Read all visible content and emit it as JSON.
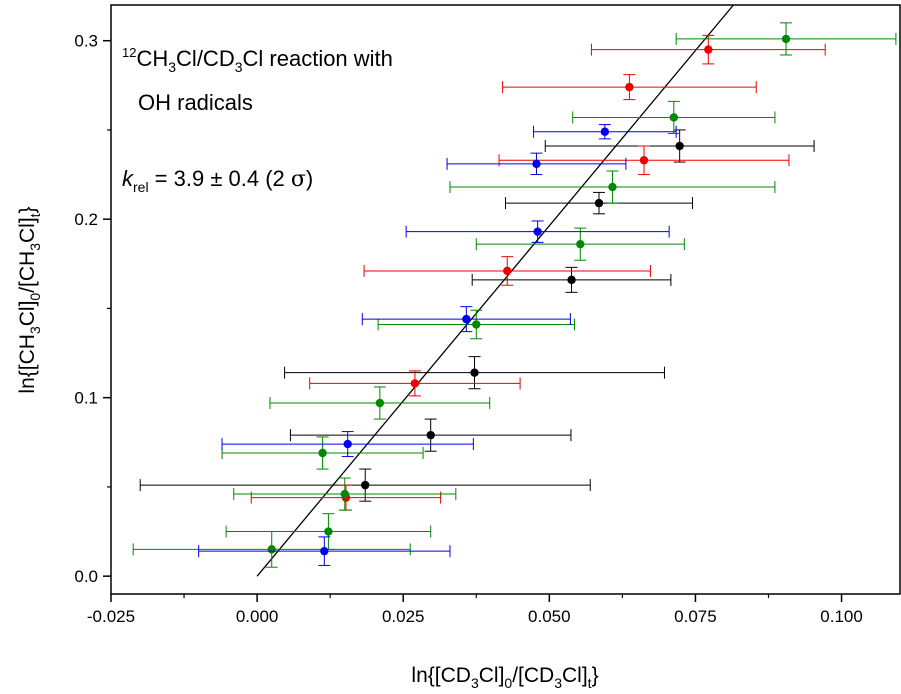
{
  "chart_data": {
    "type": "scatter",
    "title": "",
    "xlim": [
      -0.025,
      0.11
    ],
    "ylim": [
      -0.01,
      0.32
    ],
    "xticks": [
      "-0.025",
      "0.000",
      "0.025",
      "0.050",
      "0.075",
      "0.100"
    ],
    "xtick_values": [
      -0.025,
      0.0,
      0.025,
      0.05,
      0.075,
      0.1
    ],
    "yticks": [
      "0.0",
      "0.1",
      "0.2",
      "0.3"
    ],
    "ytick_values": [
      0.0,
      0.1,
      0.2,
      0.3
    ],
    "xlabel": {
      "pre": "ln{[CD",
      "sub1": "3",
      "mid": "Cl]",
      "sub2": "0",
      "mid2": "/[CD",
      "sub3": "3",
      "mid3": "Cl]",
      "sub4": "t",
      "post": "}"
    },
    "ylabel": {
      "pre": "ln{[CH",
      "sub1": "3",
      "mid": "Cl]",
      "sub2": "0",
      "mid2": "/[CH",
      "sub3": "3",
      "mid3": "Cl]",
      "sub4": "t",
      "post": "}"
    },
    "annotation": {
      "sup": "12",
      "line1_a": "CH",
      "line1_sub1": "3",
      "line1_b": "Cl/CD",
      "line1_sub2": "3",
      "line1_c": "Cl reaction with",
      "line2": "OH radicals",
      "k_symbol": "k",
      "k_sub": "rel",
      "k_value": " = 3.9 ± 0.4 (2 ",
      "sigma": "σ",
      "k_close": ")"
    },
    "grid": false,
    "fit_line": {
      "x": [
        0.0,
        0.0815
      ],
      "y": [
        0.0,
        0.32
      ],
      "color": "#000000"
    },
    "colors": {
      "black": "#000000",
      "red": "#ee0000",
      "green": "#008800",
      "blue": "#0000ee"
    },
    "series": [
      {
        "color": "#000000",
        "points": [
          {
            "x": 0.0185,
            "y": 0.051,
            "xerr": 0.0385,
            "yerr": 0.009
          },
          {
            "x": 0.0297,
            "y": 0.079,
            "xerr": 0.024,
            "yerr": 0.009
          },
          {
            "x": 0.0372,
            "y": 0.114,
            "xerr": 0.0325,
            "yerr": 0.009
          },
          {
            "x": 0.0538,
            "y": 0.166,
            "xerr": 0.017,
            "yerr": 0.007
          },
          {
            "x": 0.0585,
            "y": 0.209,
            "xerr": 0.016,
            "yerr": 0.006
          },
          {
            "x": 0.0723,
            "y": 0.241,
            "xerr": 0.023,
            "yerr": 0.009
          }
        ]
      },
      {
        "color": "#ee0000",
        "points": [
          {
            "x": 0.0152,
            "y": 0.044,
            "xerr": 0.0162,
            "yerr": 0.007
          },
          {
            "x": 0.027,
            "y": 0.108,
            "xerr": 0.018,
            "yerr": 0.007
          },
          {
            "x": 0.0428,
            "y": 0.171,
            "xerr": 0.0245,
            "yerr": 0.008
          },
          {
            "x": 0.0662,
            "y": 0.233,
            "xerr": 0.0248,
            "yerr": 0.008
          },
          {
            "x": 0.0637,
            "y": 0.274,
            "xerr": 0.0217,
            "yerr": 0.007
          },
          {
            "x": 0.0772,
            "y": 0.295,
            "xerr": 0.02,
            "yerr": 0.008
          }
        ]
      },
      {
        "color": "#008800",
        "points": [
          {
            "x": 0.0025,
            "y": 0.015,
            "xerr": 0.0237,
            "yerr": 0.01
          },
          {
            "x": 0.0122,
            "y": 0.025,
            "xerr": 0.0175,
            "yerr": 0.01
          },
          {
            "x": 0.015,
            "y": 0.046,
            "xerr": 0.019,
            "yerr": 0.009
          },
          {
            "x": 0.0112,
            "y": 0.069,
            "xerr": 0.0172,
            "yerr": 0.009
          },
          {
            "x": 0.021,
            "y": 0.097,
            "xerr": 0.0188,
            "yerr": 0.009
          },
          {
            "x": 0.0375,
            "y": 0.141,
            "xerr": 0.0168,
            "yerr": 0.008
          },
          {
            "x": 0.0553,
            "y": 0.186,
            "xerr": 0.0178,
            "yerr": 0.009
          },
          {
            "x": 0.0608,
            "y": 0.218,
            "xerr": 0.0278,
            "yerr": 0.009
          },
          {
            "x": 0.0713,
            "y": 0.257,
            "xerr": 0.0173,
            "yerr": 0.009
          },
          {
            "x": 0.0905,
            "y": 0.301,
            "xerr": 0.0188,
            "yerr": 0.009
          }
        ]
      },
      {
        "color": "#0000ee",
        "points": [
          {
            "x": 0.0115,
            "y": 0.014,
            "xerr": 0.0215,
            "yerr": 0.008
          },
          {
            "x": 0.0155,
            "y": 0.074,
            "xerr": 0.0215,
            "yerr": 0.007
          },
          {
            "x": 0.0358,
            "y": 0.144,
            "xerr": 0.0178,
            "yerr": 0.007
          },
          {
            "x": 0.048,
            "y": 0.193,
            "xerr": 0.0225,
            "yerr": 0.006
          },
          {
            "x": 0.0478,
            "y": 0.231,
            "xerr": 0.0153,
            "yerr": 0.006
          },
          {
            "x": 0.0595,
            "y": 0.249,
            "xerr": 0.0122,
            "yerr": 0.004
          }
        ]
      }
    ]
  }
}
